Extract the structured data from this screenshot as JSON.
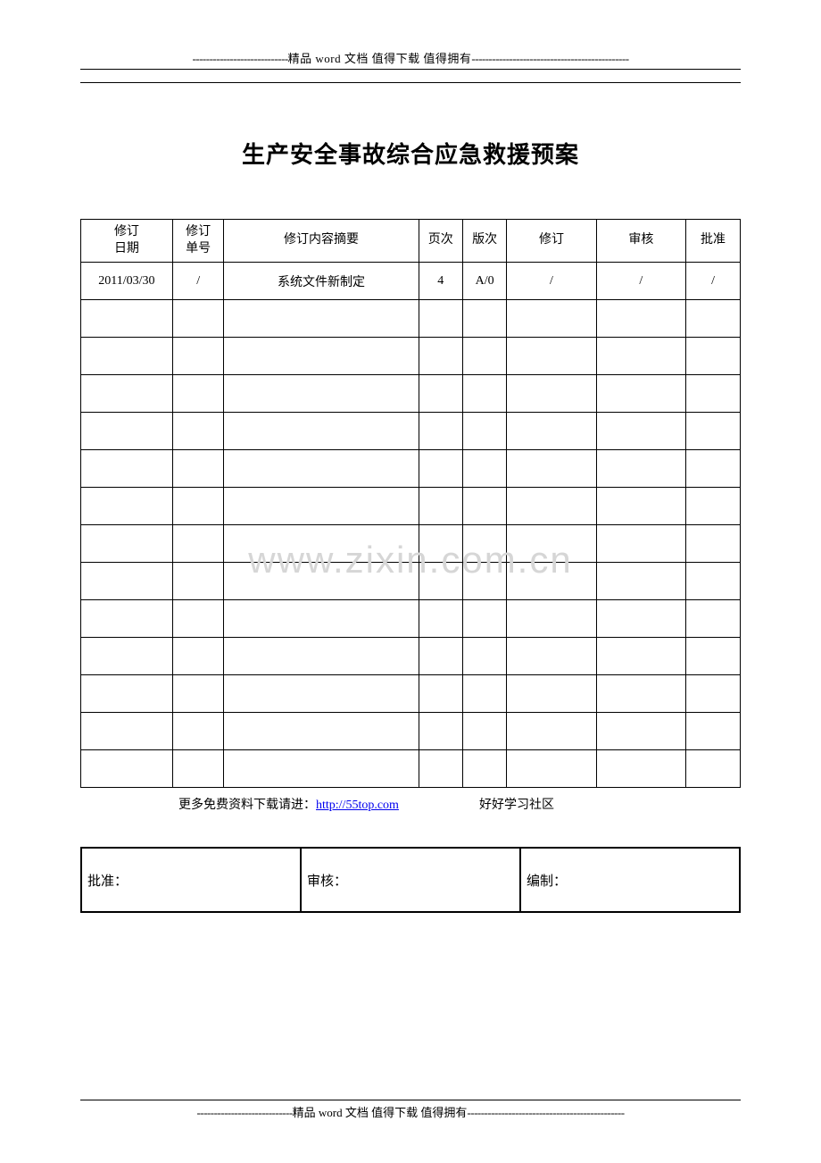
{
  "banner": {
    "dashes_left": "----------------------------",
    "text_prefix": "精品 ",
    "text_word": "word",
    "text_suffix": " 文档  值得下载  值得拥有",
    "dashes_right": "----------------------------------------------"
  },
  "title": "生产安全事故综合应急救援预案",
  "watermark": "www.zixin.com.cn",
  "revision_table": {
    "headers": {
      "date_l1": "修订",
      "date_l2": "日期",
      "order_l1": "修订",
      "order_l2": "单号",
      "summary": "修订内容摘要",
      "page": "页次",
      "version": "版次",
      "modified": "修订",
      "reviewed": "审核",
      "approved": "批准"
    },
    "rows": [
      {
        "date": "2011/03/30",
        "order": "/",
        "summary": "系统文件新制定",
        "page": "4",
        "version": "A/0",
        "modified": "/",
        "reviewed": "/",
        "approved": "/"
      },
      {
        "date": "",
        "order": "",
        "summary": "",
        "page": "",
        "version": "",
        "modified": "",
        "reviewed": "",
        "approved": ""
      },
      {
        "date": "",
        "order": "",
        "summary": "",
        "page": "",
        "version": "",
        "modified": "",
        "reviewed": "",
        "approved": ""
      },
      {
        "date": "",
        "order": "",
        "summary": "",
        "page": "",
        "version": "",
        "modified": "",
        "reviewed": "",
        "approved": ""
      },
      {
        "date": "",
        "order": "",
        "summary": "",
        "page": "",
        "version": "",
        "modified": "",
        "reviewed": "",
        "approved": ""
      },
      {
        "date": "",
        "order": "",
        "summary": "",
        "page": "",
        "version": "",
        "modified": "",
        "reviewed": "",
        "approved": ""
      },
      {
        "date": "",
        "order": "",
        "summary": "",
        "page": "",
        "version": "",
        "modified": "",
        "reviewed": "",
        "approved": ""
      },
      {
        "date": "",
        "order": "",
        "summary": "",
        "page": "",
        "version": "",
        "modified": "",
        "reviewed": "",
        "approved": ""
      },
      {
        "date": "",
        "order": "",
        "summary": "",
        "page": "",
        "version": "",
        "modified": "",
        "reviewed": "",
        "approved": ""
      },
      {
        "date": "",
        "order": "",
        "summary": "",
        "page": "",
        "version": "",
        "modified": "",
        "reviewed": "",
        "approved": ""
      },
      {
        "date": "",
        "order": "",
        "summary": "",
        "page": "",
        "version": "",
        "modified": "",
        "reviewed": "",
        "approved": ""
      },
      {
        "date": "",
        "order": "",
        "summary": "",
        "page": "",
        "version": "",
        "modified": "",
        "reviewed": "",
        "approved": ""
      },
      {
        "date": "",
        "order": "",
        "summary": "",
        "page": "",
        "version": "",
        "modified": "",
        "reviewed": "",
        "approved": ""
      },
      {
        "date": "",
        "order": "",
        "summary": "",
        "page": "",
        "version": "",
        "modified": "",
        "reviewed": "",
        "approved": ""
      }
    ]
  },
  "link_row": {
    "prefix": "更多免费资料下载请进：",
    "url_text": "http://55top.com",
    "community": "好好学习社区"
  },
  "signoff": {
    "approve": "批准：",
    "review": "审核：",
    "compile": "编制："
  }
}
